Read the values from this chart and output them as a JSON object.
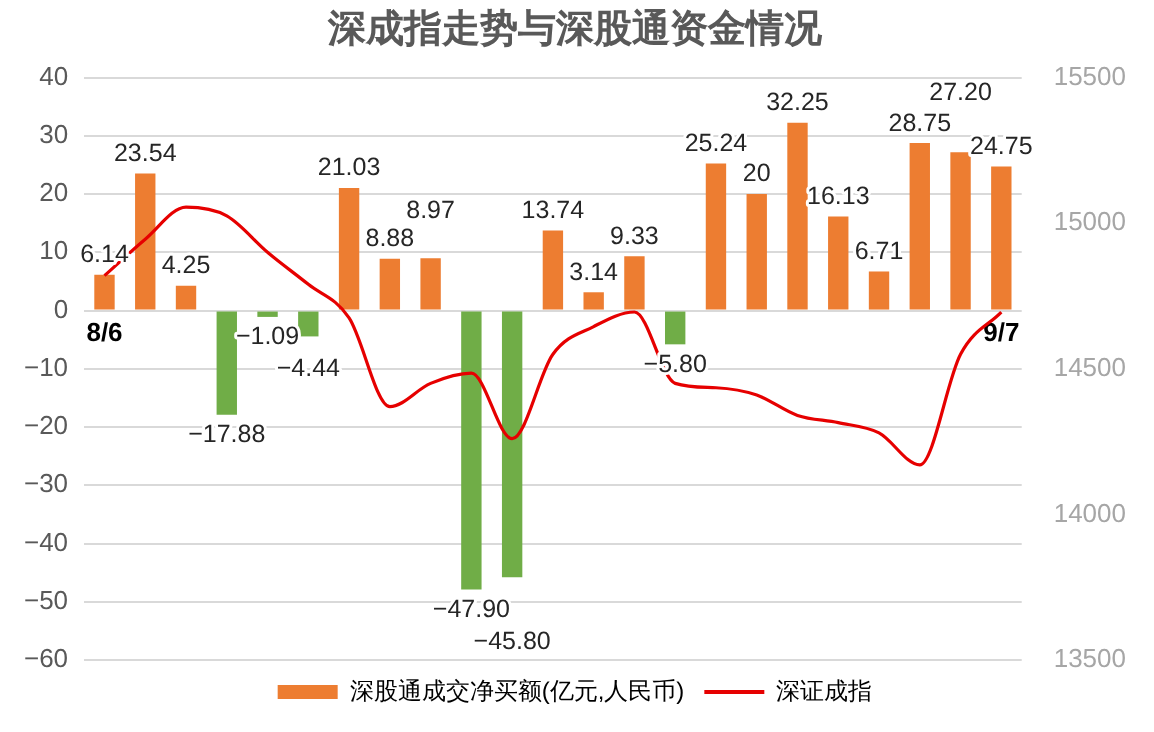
{
  "chart_data": {
    "type": "bar",
    "title": "深成指走势与深股通资金情况",
    "categories": [
      "8/6",
      null,
      null,
      null,
      null,
      null,
      null,
      null,
      null,
      null,
      null,
      null,
      null,
      null,
      null,
      null,
      null,
      null,
      null,
      null,
      null,
      null,
      "9/7"
    ],
    "series": [
      {
        "type": "bar",
        "name": "深股通成交净买额(亿元,人民币)",
        "color": "#ed7d31",
        "colors": [
          "#ed7d31",
          "#ed7d31",
          "#ed7d31",
          "#70ad47",
          "#70ad47",
          "#70ad47",
          "#ed7d31",
          "#ed7d31",
          "#ed7d31",
          "#70ad47",
          "#70ad47",
          "#ed7d31",
          "#ed7d31",
          "#ed7d31",
          "#70ad47",
          "#ed7d31",
          "#ed7d31",
          "#ed7d31",
          "#ed7d31",
          "#ed7d31",
          "#ed7d31",
          "#ed7d31",
          "#ed7d31"
        ],
        "values": [
          6.14,
          23.54,
          4.25,
          -17.88,
          -1.09,
          -4.44,
          21.03,
          8.88,
          8.97,
          -47.9,
          -45.8,
          13.74,
          3.14,
          9.33,
          -5.8,
          25.24,
          20,
          32.25,
          16.13,
          6.71,
          28.75,
          27.2,
          24.75
        ],
        "value_labels": [
          "6.14",
          "23.54",
          "4.25",
          "−17.88",
          "−1.09",
          "−4.44",
          "21.03",
          "8.88",
          "8.97",
          "−47.90",
          "−45.80",
          "13.74",
          "3.14",
          "9.33",
          "−5.80",
          "25.24",
          "20",
          "32.25",
          "16.13",
          "6.71",
          "28.75",
          "27.20",
          "24.75"
        ]
      },
      {
        "type": "line",
        "name": "深证成指",
        "color": "#e60000",
        "axis": "y2",
        "values": [
          14820,
          14945,
          15055,
          15025,
          14900,
          14790,
          14675,
          14370,
          14450,
          14485,
          14260,
          14550,
          14645,
          14695,
          14450,
          14435,
          14410,
          14340,
          14315,
          14280,
          14170,
          14550,
          14695
        ]
      }
    ],
    "ylim": [
      -60,
      40
    ],
    "yticks": [
      {
        "value": -60,
        "label": "−60"
      },
      {
        "value": -50,
        "label": "−50"
      },
      {
        "value": -40,
        "label": "−40"
      },
      {
        "value": -30,
        "label": "−30"
      },
      {
        "value": -20,
        "label": "−20"
      },
      {
        "value": -10,
        "label": "−10"
      },
      0,
      10,
      20,
      30,
      40
    ],
    "y2lim": [
      13500,
      15500
    ],
    "y2ticks": [
      13500,
      14000,
      14500,
      15000,
      15500
    ],
    "grid": "y",
    "legend": "bottom",
    "marker": "none",
    "line_style": "solid"
  }
}
